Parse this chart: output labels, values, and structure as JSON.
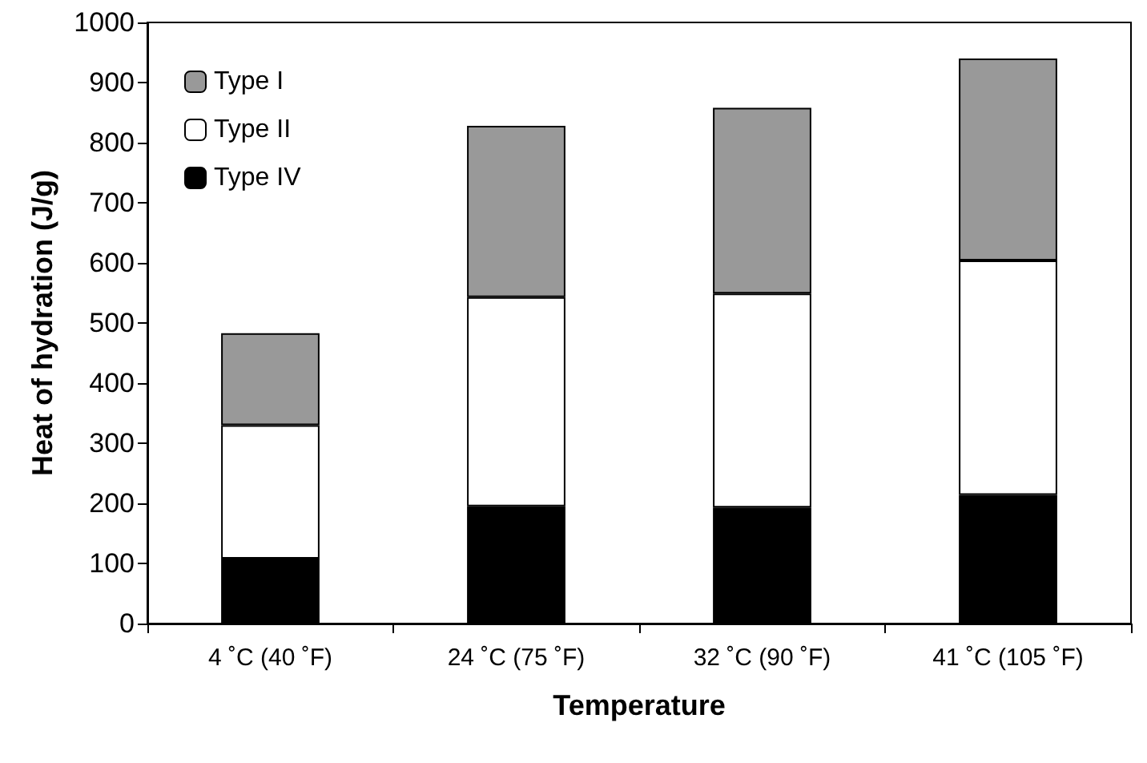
{
  "chart_data": {
    "type": "bar",
    "stacked": true,
    "xlabel": "Temperature",
    "ylabel": "Heat of hydration (J/g)",
    "categories": [
      "4 ˚C (40 ˚F)",
      "24 ˚C (75 ˚F)",
      "32 ˚C (90 ˚F)",
      "41 ˚C (105 ˚F)"
    ],
    "series": [
      {
        "name": "Type IV",
        "color": "#000000",
        "values": [
          108,
          195,
          193,
          214
        ]
      },
      {
        "name": "Type II",
        "color": "#ffffff",
        "values": [
          222,
          348,
          356,
          390
        ]
      },
      {
        "name": "Type I",
        "color": "#999999",
        "values": [
          153,
          285,
          309,
          336
        ]
      }
    ],
    "ylim": [
      0,
      1000
    ],
    "yticks": [
      0,
      100,
      200,
      300,
      400,
      500,
      600,
      700,
      800,
      900,
      1000
    ],
    "grid": false,
    "legend": "top left"
  }
}
